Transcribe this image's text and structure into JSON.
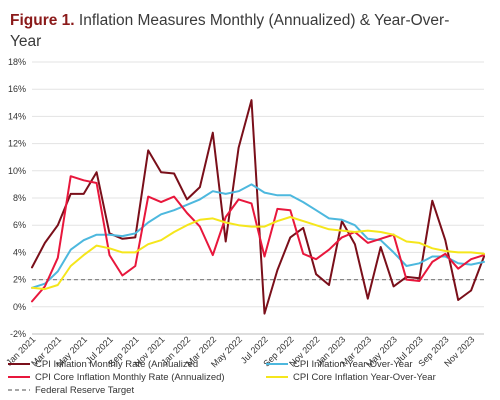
{
  "header": {
    "figure_label": "Figure 1.",
    "title": "Inflation Measures Monthly (Annualized) & Year-Over-Year"
  },
  "chart_data": {
    "type": "line",
    "ylim": [
      -2,
      18
    ],
    "yticks": [
      -2,
      0,
      2,
      4,
      6,
      8,
      10,
      12,
      14,
      16,
      18
    ],
    "ytick_labels": [
      "-2%",
      "0%",
      "2%",
      "4%",
      "6%",
      "8%",
      "10%",
      "12%",
      "14%",
      "16%",
      "18%"
    ],
    "grid": true,
    "categories": [
      "Jan 2021",
      "Feb 2021",
      "Mar 2021",
      "Apr 2021",
      "May 2021",
      "Jun 2021",
      "Jul 2021",
      "Aug 2021",
      "Sep 2021",
      "Oct 2021",
      "Nov 2021",
      "Dec 2021",
      "Jan 2022",
      "Feb 2022",
      "Mar 2022",
      "Apr 2022",
      "May 2022",
      "Jun 2022",
      "Jul 2022",
      "Aug 2022",
      "Sep 2022",
      "Oct 2022",
      "Nov 2022",
      "Dec 2022",
      "Jan 2023",
      "Feb 2023",
      "Mar 2023",
      "Apr 2023",
      "May 2023",
      "Jun 2023",
      "Jul 2023",
      "Aug 2023",
      "Sep 2023",
      "Oct 2023",
      "Nov 2023",
      "Dec 2023"
    ],
    "xtick_labels": [
      "Jan 2021",
      "Mar 2021",
      "May 2021",
      "Jul 2021",
      "Sep 2021",
      "Nov 2021",
      "Jan 2022",
      "Mar 2022",
      "May 2022",
      "Jul 2022",
      "Sep 2022",
      "Nov 2022",
      "Jan 2023",
      "Mar 2023",
      "May 2023",
      "Jul 2023",
      "Sep 2023",
      "Nov 2023"
    ],
    "series": [
      {
        "name": "CPI Inflation Monthly Rate (Annualized",
        "color": "#7a0f1a",
        "values": [
          2.9,
          4.7,
          6.0,
          8.3,
          8.3,
          9.9,
          5.4,
          5.0,
          5.1,
          11.5,
          9.9,
          9.8,
          7.9,
          8.8,
          12.8,
          4.8,
          11.7,
          15.2,
          -0.5,
          2.7,
          5.1,
          5.8,
          2.4,
          1.6,
          6.3,
          4.6,
          0.6,
          4.4,
          1.5,
          2.2,
          2.1,
          7.8,
          4.9,
          0.5,
          1.2,
          3.7
        ]
      },
      {
        "name": "CPI Inflation Year-Over-Year",
        "color": "#4db8de",
        "values": [
          1.4,
          1.7,
          2.6,
          4.2,
          4.9,
          5.3,
          5.3,
          5.2,
          5.4,
          6.2,
          6.8,
          7.1,
          7.5,
          7.9,
          8.5,
          8.3,
          8.5,
          9.0,
          8.4,
          8.2,
          8.2,
          7.7,
          7.1,
          6.5,
          6.4,
          6.0,
          5.0,
          4.9,
          4.0,
          3.0,
          3.2,
          3.7,
          3.7,
          3.2,
          3.1,
          3.3
        ]
      },
      {
        "name": "CPI Core Inflation Monthly Rate (Annualized)",
        "color": "#e8173c",
        "values": [
          0.4,
          1.5,
          3.6,
          9.6,
          9.3,
          9.1,
          3.8,
          2.3,
          3.0,
          8.1,
          7.7,
          8.1,
          6.9,
          5.9,
          3.8,
          6.6,
          7.9,
          7.6,
          3.7,
          7.2,
          7.1,
          3.9,
          3.5,
          4.2,
          5.1,
          5.5,
          4.7,
          5.0,
          5.3,
          2.0,
          1.9,
          3.3,
          3.9,
          2.8,
          3.5,
          3.8
        ]
      },
      {
        "name": "CPI Core Inflation Year-Over-Year",
        "color": "#f5e61c",
        "values": [
          1.4,
          1.3,
          1.6,
          3.0,
          3.8,
          4.5,
          4.3,
          4.0,
          4.0,
          4.6,
          4.9,
          5.5,
          6.0,
          6.4,
          6.5,
          6.2,
          6.0,
          5.9,
          5.9,
          6.3,
          6.6,
          6.3,
          6.0,
          5.7,
          5.6,
          5.5,
          5.6,
          5.5,
          5.3,
          4.8,
          4.7,
          4.3,
          4.1,
          4.0,
          4.0,
          3.9
        ]
      }
    ],
    "reference_line": {
      "name": "Federal Reserve Target",
      "value": 2,
      "color": "#888888",
      "style": "dashed"
    },
    "legend": {
      "placement": "bottom",
      "items": [
        {
          "label": "CPI Inflation Monthly Rate (Annualized",
          "color": "#7a0f1a",
          "style": "solid"
        },
        {
          "label": "CPI Inflation Year-Over-Year",
          "color": "#4db8de",
          "style": "solid"
        },
        {
          "label": "CPI Core Inflation Monthly Rate (Annualized)",
          "color": "#e8173c",
          "style": "solid"
        },
        {
          "label": "CPI Core Inflation Year-Over-Year",
          "color": "#f5e61c",
          "style": "solid"
        },
        {
          "label": "Federal Reserve Target",
          "color": "#888888",
          "style": "dashed"
        }
      ]
    }
  }
}
